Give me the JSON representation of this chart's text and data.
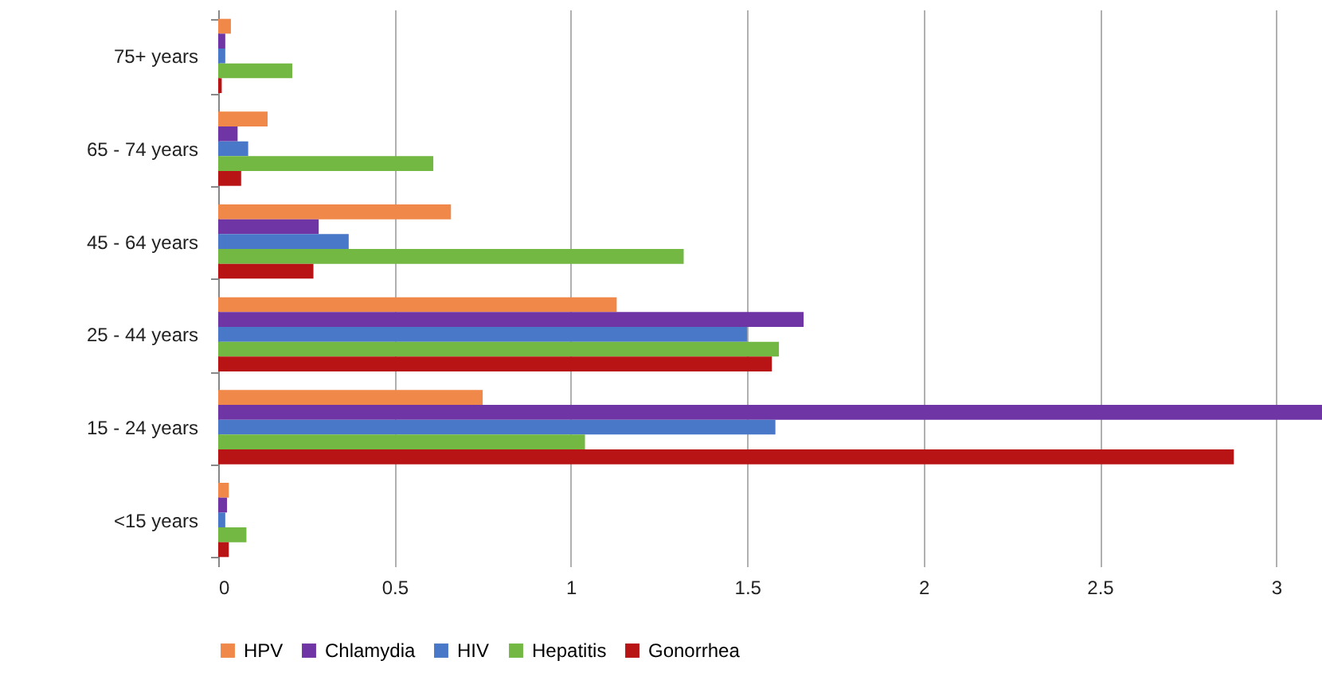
{
  "chart_data": {
    "type": "bar",
    "orientation": "horizontal",
    "categories": [
      "75+ years",
      "65 - 74 years",
      "45 - 64 years",
      "25 - 44 years",
      "15 - 24 years",
      "<15 years"
    ],
    "series": [
      {
        "name": "HPV",
        "color": "#f0884a",
        "values": [
          0.036,
          0.14,
          0.66,
          1.13,
          0.75,
          0.03
        ]
      },
      {
        "name": "Chlamydia",
        "color": "#6f35a5",
        "values": [
          0.02,
          0.055,
          0.285,
          1.66,
          3.13,
          0.025
        ]
      },
      {
        "name": "HIV",
        "color": "#4a78c8",
        "values": [
          0.02,
          0.085,
          0.37,
          1.5,
          1.58,
          0.02
        ]
      },
      {
        "name": "Hepatitis",
        "color": "#72b843",
        "values": [
          0.21,
          0.61,
          1.32,
          1.59,
          1.04,
          0.08
        ]
      },
      {
        "name": "Gonorrhea",
        "color": "#b81416",
        "values": [
          0.01,
          0.065,
          0.27,
          1.57,
          2.88,
          0.03
        ]
      }
    ],
    "xlim": [
      0,
      3.13
    ],
    "xticks": [
      0,
      0.5,
      1,
      1.5,
      2,
      2.5,
      3
    ],
    "grid": "x",
    "legend": "bottom"
  }
}
